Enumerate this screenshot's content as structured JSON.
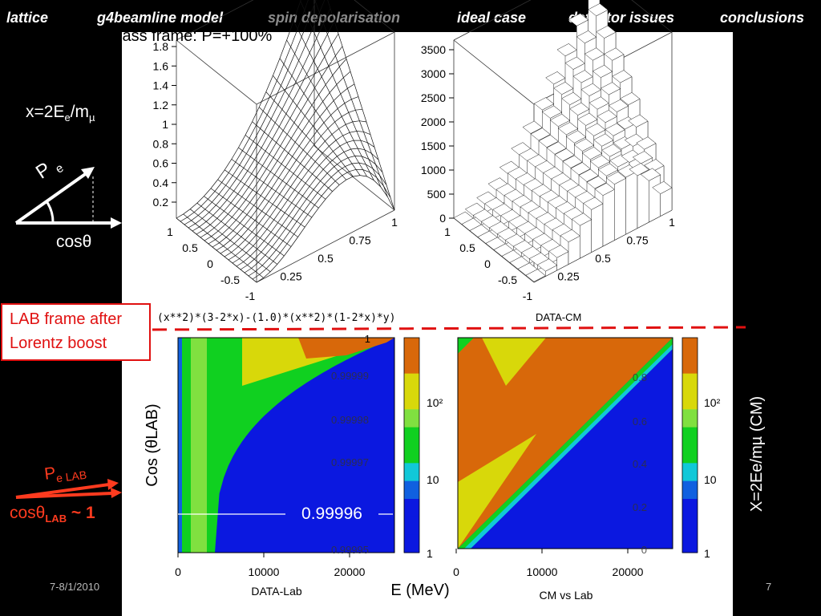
{
  "nav": {
    "items": [
      {
        "label": "lattice",
        "dim": false
      },
      {
        "label": "g4beamline model",
        "dim": false
      },
      {
        "label": "spin depolarisation",
        "dim": true
      },
      {
        "label": "ideal case",
        "dim": false
      },
      {
        "label": "detector issues",
        "dim": false
      },
      {
        "label": "conclusions",
        "dim": false
      }
    ]
  },
  "slide": {
    "title": "Centre of  Mass frame: P=+100%",
    "x_def": "x=2E",
    "x_def_sub": "e",
    "x_def_tail": "/m",
    "x_def_mu": "µ",
    "pe_label": "P",
    "pe_sub": "e",
    "costheta": "cosθ",
    "lab_box_line1": "LAB frame after",
    "lab_box_line2": "Lorentz boost",
    "pe_lab": "P",
    "pe_lab_sub": "e LAB",
    "costheta_lab": "cosθ",
    "costheta_lab_sub": "LAB",
    "costheta_lab_tail": " ~ 1",
    "footer_date": "7-8/1/2010",
    "page_number": "7",
    "colors": {
      "accent_red": "#e01010",
      "orange_red": "#ff3b1f",
      "dashed_line": "#e01010"
    }
  },
  "chart_data": [
    {
      "type": "surface",
      "title": "",
      "formula_label": "(x**2)*(3-2*x)-(1.0)*(x**2)*(1-2*x)*y)",
      "z_ticks": [
        "1.8",
        "1.6",
        "1.4",
        "1.2",
        "1",
        "0.8",
        "0.6",
        "0.4",
        "0.2"
      ],
      "y_ticks": [
        "1",
        "0.5",
        "0",
        "-0.5",
        "-1"
      ],
      "x_ticks": [
        "0",
        "0.25",
        "0.5",
        "0.75",
        "1"
      ],
      "zlim": [
        0,
        1.8
      ],
      "x": "x",
      "y": "cosθ",
      "function": "x^2(3-2x) - x^2(1-2x)y"
    },
    {
      "type": "lego",
      "title": "DATA-CM",
      "z_ticks": [
        "3500",
        "3000",
        "2500",
        "2000",
        "1500",
        "1000",
        "500",
        "0"
      ],
      "y_ticks": [
        "1",
        "0.5",
        "0",
        "-0.5",
        "-1"
      ],
      "x_ticks": [
        "0",
        "0.25",
        "0.5",
        "0.75",
        "1"
      ],
      "zlim": [
        0,
        3500
      ]
    },
    {
      "type": "heatmap",
      "title": "DATA-Lab",
      "xlabel": "E (MeV)",
      "ylabel": "Cos (θLAB)",
      "x_ticks": [
        "0",
        "10000",
        "20000"
      ],
      "y_ticks": [
        "0.99999",
        "0.99998",
        "0.99997",
        "0.99996",
        "0.99995"
      ],
      "highlight_value": "0.99996",
      "top_tick": "1",
      "colorbar_ticks": [
        "10²",
        "10",
        "1"
      ],
      "log_scale": true
    },
    {
      "type": "heatmap",
      "title": "CM vs Lab",
      "ylabel": "X=2Ee/mµ (CM)",
      "x_ticks": [
        "0",
        "10000",
        "20000"
      ],
      "y_ticks": [
        "0.8",
        "0.6",
        "0.4",
        "0.2",
        "0"
      ],
      "colorbar_ticks": [
        "10²",
        "10",
        "1"
      ],
      "log_scale": true
    }
  ]
}
